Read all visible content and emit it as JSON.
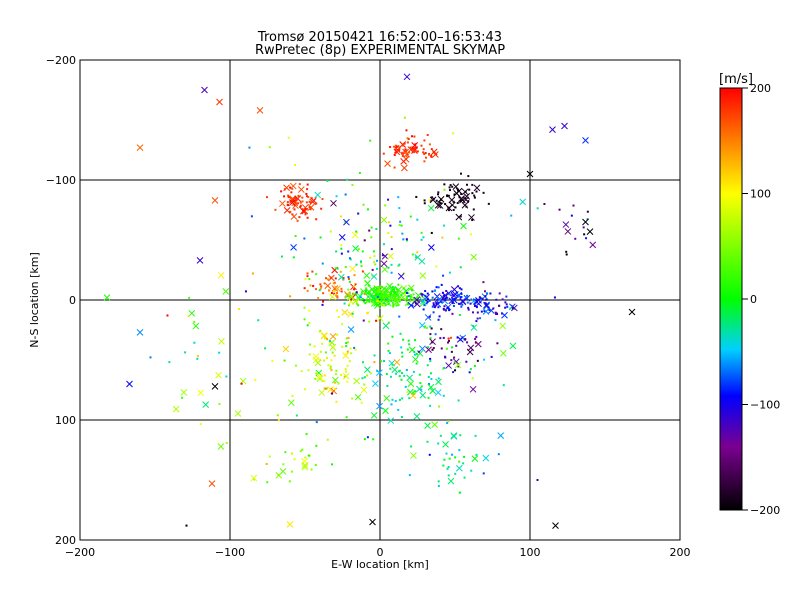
{
  "chart_data": {
    "type": "scatter",
    "title": "Tromsø 20150421 16:52:00–16:53:43",
    "subtitle": "RwPretec (8p) EXPERIMENTAL SKYMAP",
    "xlabel": "E-W location [km]",
    "ylabel": "N-S location [km]",
    "xlim": [
      -200,
      200
    ],
    "ylim": [
      -200,
      200
    ],
    "xticks": [
      -200,
      -100,
      0,
      100,
      200
    ],
    "yticks": [
      -200,
      -100,
      0,
      100,
      200
    ],
    "xtick_labels": [
      "−200",
      "−100",
      "0",
      "100",
      "200"
    ],
    "ytick_labels": [
      "200",
      "100",
      "0",
      "−100",
      "−200"
    ],
    "grid_x": [
      -100,
      0,
      100
    ],
    "grid_y": [
      100,
      0,
      -100
    ],
    "colorbar": {
      "label": "[m/s]",
      "range": [
        -200,
        200
      ],
      "ticks": [
        200,
        100,
        0,
        -100,
        -200
      ],
      "tick_labels": [
        "200",
        "100",
        "0",
        "−100",
        "−200"
      ],
      "colors": [
        "#000000",
        "#7a0090",
        "#0000ff",
        "#00d0ff",
        "#00ff00",
        "#ffff00",
        "#ff0000"
      ]
    },
    "marker_types": [
      "dot",
      "cross"
    ],
    "clusters": [
      {
        "cx": 3,
        "cy": 3,
        "sx": 14,
        "sy": 6,
        "n": 220,
        "v": 20,
        "vs": 25
      },
      {
        "cx": 45,
        "cy": 0,
        "sx": 18,
        "sy": 8,
        "n": 110,
        "v": -90,
        "vs": 25
      },
      {
        "cx": 75,
        "cy": -5,
        "sx": 10,
        "sy": 10,
        "n": 40,
        "v": -110,
        "vs": 30
      },
      {
        "cx": 20,
        "cy": 125,
        "sx": 10,
        "sy": 8,
        "n": 70,
        "v": 180,
        "vs": 15
      },
      {
        "cx": 50,
        "cy": 85,
        "sx": 15,
        "sy": 10,
        "n": 70,
        "v": -190,
        "vs": 10
      },
      {
        "cx": -55,
        "cy": 80,
        "sx": 12,
        "sy": 10,
        "n": 70,
        "v": 180,
        "vs": 15
      },
      {
        "cx": -30,
        "cy": 10,
        "sx": 15,
        "sy": 10,
        "n": 50,
        "v": 170,
        "vs": 30
      },
      {
        "cx": -30,
        "cy": -50,
        "sx": 18,
        "sy": 30,
        "n": 90,
        "v": 80,
        "vs": 40
      },
      {
        "cx": 20,
        "cy": -60,
        "sx": 25,
        "sy": 35,
        "n": 110,
        "v": -20,
        "vs": 30
      },
      {
        "cx": 50,
        "cy": -40,
        "sx": 15,
        "sy": 15,
        "n": 40,
        "v": -150,
        "vs": 40
      },
      {
        "cx": -60,
        "cy": -130,
        "sx": 25,
        "sy": 20,
        "n": 30,
        "v": 60,
        "vs": 50
      },
      {
        "cx": 50,
        "cy": -130,
        "sx": 25,
        "sy": 20,
        "n": 40,
        "v": -20,
        "vs": 40
      },
      {
        "cx": 0,
        "cy": 40,
        "sx": 35,
        "sy": 40,
        "n": 100,
        "v": 0,
        "vs": 100
      },
      {
        "cx": 0,
        "cy": 0,
        "sx": 70,
        "sy": 80,
        "n": 120,
        "v": 0,
        "vs": 120
      },
      {
        "cx": -120,
        "cy": -50,
        "sx": 30,
        "sy": 50,
        "n": 30,
        "v": 50,
        "vs": 100
      },
      {
        "cx": 130,
        "cy": 60,
        "sx": 20,
        "sy": 20,
        "n": 15,
        "v": -150,
        "vs": 60
      }
    ],
    "notable_points": [
      {
        "x": -117,
        "y": 175,
        "v": -120,
        "m": "cross"
      },
      {
        "x": -107,
        "y": 165,
        "v": 180,
        "m": "cross"
      },
      {
        "x": -160,
        "y": 127,
        "v": 160,
        "m": "cross"
      },
      {
        "x": 18,
        "y": 186,
        "v": -110,
        "m": "cross"
      },
      {
        "x": 115,
        "y": 142,
        "v": -110,
        "m": "cross"
      },
      {
        "x": 123,
        "y": 145,
        "v": -110,
        "m": "cross"
      },
      {
        "x": 137,
        "y": 133,
        "v": -80,
        "m": "cross"
      },
      {
        "x": 137,
        "y": 65,
        "v": -200,
        "m": "cross"
      },
      {
        "x": 140,
        "y": 57,
        "v": -200,
        "m": "cross"
      },
      {
        "x": 168,
        "y": -10,
        "v": -200,
        "m": "cross"
      },
      {
        "x": 117,
        "y": -188,
        "v": -200,
        "m": "cross"
      },
      {
        "x": -182,
        "y": 2,
        "v": 10,
        "m": "cross"
      },
      {
        "x": -160,
        "y": -27,
        "v": -60,
        "m": "cross"
      },
      {
        "x": -167,
        "y": -70,
        "v": -90,
        "m": "cross"
      },
      {
        "x": -110,
        "y": -72,
        "v": -200,
        "m": "cross"
      },
      {
        "x": -112,
        "y": -153,
        "v": 170,
        "m": "cross"
      },
      {
        "x": -129,
        "y": -188,
        "v": -200,
        "m": "dot"
      },
      {
        "x": -60,
        "y": -187,
        "v": 110,
        "m": "cross"
      },
      {
        "x": -5,
        "y": -185,
        "v": -200,
        "m": "cross"
      },
      {
        "x": -110,
        "y": 83,
        "v": 170,
        "m": "cross"
      },
      {
        "x": -80,
        "y": 158,
        "v": 170,
        "m": "cross"
      },
      {
        "x": 100,
        "y": 105,
        "v": -200,
        "m": "cross"
      },
      {
        "x": 105,
        "y": -150,
        "v": -120,
        "m": "dot"
      },
      {
        "x": -120,
        "y": 33,
        "v": -110,
        "m": "cross"
      }
    ]
  }
}
